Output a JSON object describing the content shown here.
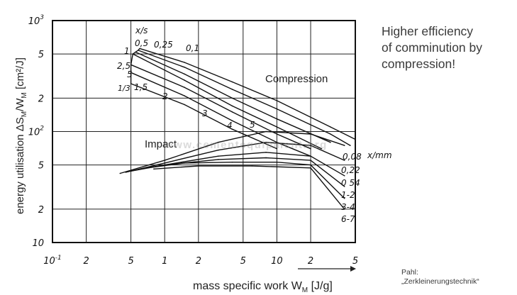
{
  "annotation": {
    "lines": [
      "Higher efficiency",
      "of comminution by",
      "compression!"
    ]
  },
  "source": {
    "lines": [
      "Pahl:",
      "„Zerkleinerungstechnik“"
    ]
  },
  "watermark": "www.cementequipment.org",
  "chart_data": {
    "type": "line",
    "title": "",
    "xlabel": "mass specific work W",
    "xlabel_sub": "M",
    "xlabel_unit": " [J/g]",
    "ylabel": "energy utilisation ΔS",
    "ylabel_mid": "/W",
    "ylabel_unit": " [cm²/J]",
    "ylabel_sub": "M",
    "x_scale": "log",
    "y_scale": "log",
    "xlim": [
      0.1,
      50
    ],
    "ylim": [
      10,
      1000
    ],
    "grid": true,
    "x_ticks": [
      {
        "v": 0.1,
        "t": "10",
        "sup": "-1"
      },
      {
        "v": 0.2,
        "t": "2"
      },
      {
        "v": 0.5,
        "t": "5"
      },
      {
        "v": 1,
        "t": "1"
      },
      {
        "v": 2,
        "t": "2"
      },
      {
        "v": 5,
        "t": "5"
      },
      {
        "v": 10,
        "t": "10"
      },
      {
        "v": 20,
        "t": "2"
      },
      {
        "v": 50,
        "t": "5"
      }
    ],
    "y_ticks": [
      {
        "v": 10,
        "t": "10"
      },
      {
        "v": 20,
        "t": "2"
      },
      {
        "v": 50,
        "t": "5"
      },
      {
        "v": 100,
        "t": "10",
        "sup": "2"
      },
      {
        "v": 200,
        "t": "2"
      },
      {
        "v": 500,
        "t": "5"
      },
      {
        "v": 1000,
        "t": "10",
        "sup": "3"
      }
    ],
    "region_labels": {
      "compression": "Compression",
      "impact": "Impact"
    },
    "compression_series": {
      "parameter": "x/s",
      "names": [
        "0,5",
        "0,25",
        "0,1",
        "1",
        "2,5",
        "5",
        "1/3",
        "1,5",
        "2",
        "3",
        "4",
        "5"
      ],
      "curves": [
        {
          "name": "0,1",
          "points": [
            [
              0.6,
              560
            ],
            [
              1.5,
              420
            ],
            [
              4,
              280
            ],
            [
              10,
              190
            ],
            [
              30,
              110
            ],
            [
              50,
              85
            ]
          ]
        },
        {
          "name": "0,25",
          "points": [
            [
              0.58,
              540
            ],
            [
              1.5,
              380
            ],
            [
              4,
              240
            ],
            [
              10,
              160
            ],
            [
              30,
              95
            ],
            [
              45,
              75
            ]
          ]
        },
        {
          "name": "0,5",
          "points": [
            [
              0.55,
              520
            ],
            [
              1.5,
              330
            ],
            [
              4,
              200
            ],
            [
              10,
              130
            ],
            [
              30,
              80
            ]
          ]
        },
        {
          "name": "1",
          "points": [
            [
              0.52,
              500
            ],
            [
              1.5,
              290
            ],
            [
              4,
              170
            ],
            [
              10,
              110
            ],
            [
              25,
              70
            ]
          ]
        },
        {
          "name": "2,5",
          "points": [
            [
              0.5,
              400
            ],
            [
              1.5,
              250
            ],
            [
              4,
              150
            ],
            [
              10,
              95
            ],
            [
              20,
              70
            ]
          ]
        },
        {
          "name": "5",
          "points": [
            [
              0.5,
              340
            ],
            [
              1.5,
              210
            ],
            [
              4,
              125
            ],
            [
              10,
              80
            ],
            [
              20,
              60
            ]
          ]
        },
        {
          "name": "1,5",
          "points": [
            [
              0.5,
              270
            ],
            [
              1.5,
              175
            ],
            [
              4,
              105
            ],
            [
              10,
              70
            ]
          ]
        }
      ]
    },
    "impact_series": {
      "parameter": "x/mm",
      "names": [
        "0,08",
        "0,22",
        "0 54",
        "1-2",
        "3-4",
        "6-7"
      ],
      "curves": [
        {
          "name": "0,08",
          "points": [
            [
              0.4,
              42
            ],
            [
              1,
              55
            ],
            [
              3,
              80
            ],
            [
              8,
              100
            ],
            [
              20,
              95
            ],
            [
              40,
              75
            ]
          ]
        },
        {
          "name": "0,22",
          "points": [
            [
              0.45,
              43
            ],
            [
              1,
              52
            ],
            [
              3,
              68
            ],
            [
              8,
              80
            ],
            [
              20,
              75
            ],
            [
              40,
              55
            ]
          ]
        },
        {
          "name": "0 54",
          "points": [
            [
              0.5,
              44
            ],
            [
              1,
              50
            ],
            [
              3,
              60
            ],
            [
              8,
              65
            ],
            [
              20,
              60
            ],
            [
              40,
              40
            ]
          ]
        },
        {
          "name": "1-2",
          "points": [
            [
              0.6,
              46
            ],
            [
              1,
              50
            ],
            [
              3,
              56
            ],
            [
              8,
              58
            ],
            [
              20,
              55
            ],
            [
              40,
              32
            ]
          ]
        },
        {
          "name": "3-4",
          "points": [
            [
              0.7,
              47
            ],
            [
              1.5,
              52
            ],
            [
              4,
              53
            ],
            [
              10,
              53
            ],
            [
              20,
              50
            ],
            [
              40,
              25
            ]
          ]
        },
        {
          "name": "6-7",
          "points": [
            [
              0.8,
              46
            ],
            [
              2,
              49
            ],
            [
              6,
              49
            ],
            [
              20,
              47
            ],
            [
              40,
              20
            ]
          ]
        }
      ]
    }
  }
}
